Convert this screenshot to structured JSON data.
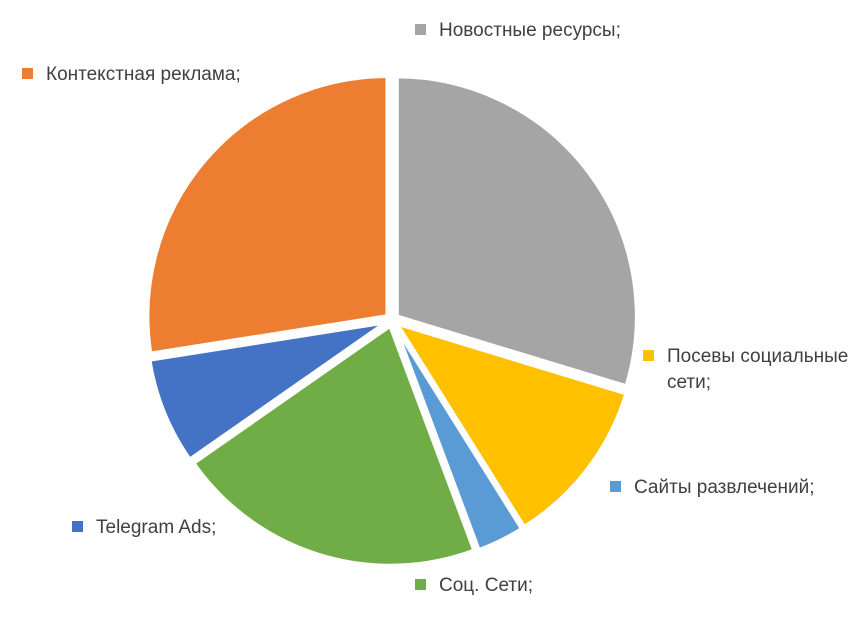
{
  "chart_data": {
    "type": "pie",
    "title": "",
    "exploded": true,
    "start_angle": "top",
    "direction": "clockwise",
    "series": [
      {
        "name": "Новостные ресурсы;",
        "share": 0.297,
        "color": "#A5A5A5"
      },
      {
        "name": "Посевы социальные сети;",
        "share": 0.114,
        "color": "#FFC000"
      },
      {
        "name": "Сайты развлечений;",
        "share": 0.032,
        "color": "#5B9BD5"
      },
      {
        "name": "Соц. Сети;",
        "share": 0.21,
        "color": "#70AD47"
      },
      {
        "name": "Telegram Ads;",
        "share": 0.072,
        "color": "#4472C4"
      },
      {
        "name": "Контекстная реклама;",
        "share": 0.275,
        "color": "#ED7D31"
      }
    ]
  }
}
